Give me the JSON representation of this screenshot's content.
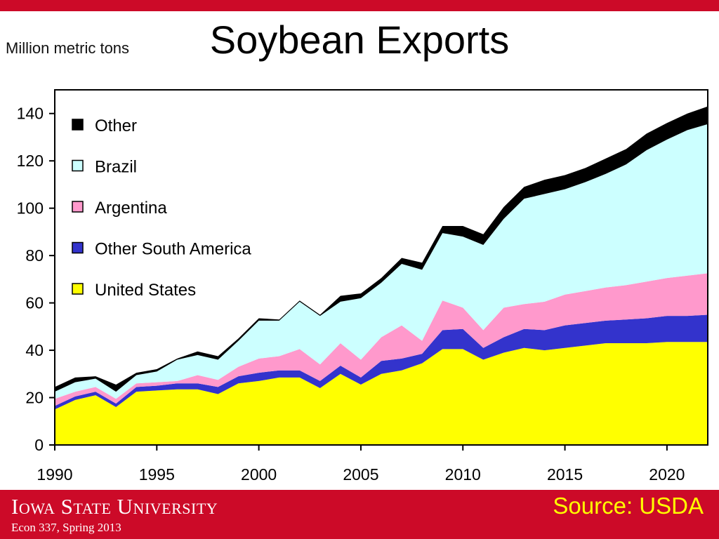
{
  "header": {
    "title": "Soybean Exports",
    "unit_label": "Million metric tons"
  },
  "footer": {
    "university": "Iowa State University",
    "course": "Econ 337, Spring 2013",
    "source": "Source: USDA"
  },
  "colors": {
    "brand_red": "#cc0a28",
    "source_text": "#ffff00"
  },
  "chart_data": {
    "type": "area",
    "stacked": true,
    "x": [
      1990,
      1991,
      1992,
      1993,
      1994,
      1995,
      1996,
      1997,
      1998,
      1999,
      2000,
      2001,
      2002,
      2003,
      2004,
      2005,
      2006,
      2007,
      2008,
      2009,
      2010,
      2011,
      2012,
      2013,
      2014,
      2015,
      2016,
      2017,
      2018,
      2019,
      2020,
      2021,
      2022
    ],
    "series": [
      {
        "name": "United States",
        "color": "#ffff00",
        "values": [
          15,
          19,
          21,
          16,
          22.5,
          23,
          23.5,
          23.5,
          21.5,
          26,
          27,
          28.5,
          28.5,
          24,
          30,
          25.5,
          30,
          31.5,
          34.5,
          40.5,
          40.5,
          36,
          39,
          41,
          40,
          41,
          42,
          43,
          43,
          43,
          43.5,
          43.5,
          43.5
        ]
      },
      {
        "name": "Other South America",
        "color": "#3333cc",
        "values": [
          1.5,
          1.5,
          1.5,
          1.5,
          2,
          2,
          2.5,
          2.5,
          3,
          3,
          3.5,
          3,
          3,
          3,
          3.5,
          3,
          5.5,
          5,
          4,
          8,
          8.5,
          5,
          6.5,
          8,
          8.5,
          9.5,
          9.5,
          9.5,
          10,
          10.5,
          11,
          11,
          11.5
        ]
      },
      {
        "name": "Argentina",
        "color": "#ff99cc",
        "values": [
          3,
          2,
          2,
          2,
          1.5,
          1.5,
          1,
          3.5,
          3,
          4,
          6,
          6,
          9,
          7,
          9.5,
          7.5,
          10,
          14,
          5.5,
          12.5,
          9,
          7.5,
          12.5,
          10.5,
          12,
          13,
          13.5,
          14,
          14.5,
          15.5,
          16,
          17,
          17.5
        ]
      },
      {
        "name": "Brazil",
        "color": "#ccffff",
        "values": [
          3,
          4,
          3.5,
          3,
          3.5,
          4.5,
          9,
          8.5,
          8.5,
          11,
          16,
          15,
          20,
          20.5,
          17.5,
          26,
          23,
          26,
          30,
          28.5,
          30,
          36,
          37.5,
          44.5,
          45.5,
          44.5,
          46,
          48,
          51,
          55.5,
          58.5,
          61.5,
          63
        ]
      },
      {
        "name": "Other",
        "color": "#000000",
        "values": [
          2,
          2,
          1,
          3,
          1,
          1,
          0.5,
          1.5,
          1.5,
          1,
          1,
          0.5,
          0.5,
          0.5,
          2.5,
          2,
          2,
          2.5,
          3,
          3,
          4.5,
          4.5,
          5,
          5,
          6,
          6,
          6,
          6.5,
          6.5,
          7,
          7,
          7,
          7.5
        ]
      }
    ],
    "xlim": [
      1990,
      2022
    ],
    "ylim": [
      0,
      150
    ],
    "x_ticks": [
      1990,
      1995,
      2000,
      2005,
      2010,
      2015,
      2020
    ],
    "y_ticks": [
      0,
      20,
      40,
      60,
      80,
      100,
      120,
      140
    ],
    "xlabel": "",
    "ylabel": "Million metric tons",
    "legend_order": [
      "Other",
      "Brazil",
      "Argentina",
      "Other South America",
      "United States"
    ],
    "legend_position": "top-left",
    "grid": false
  }
}
